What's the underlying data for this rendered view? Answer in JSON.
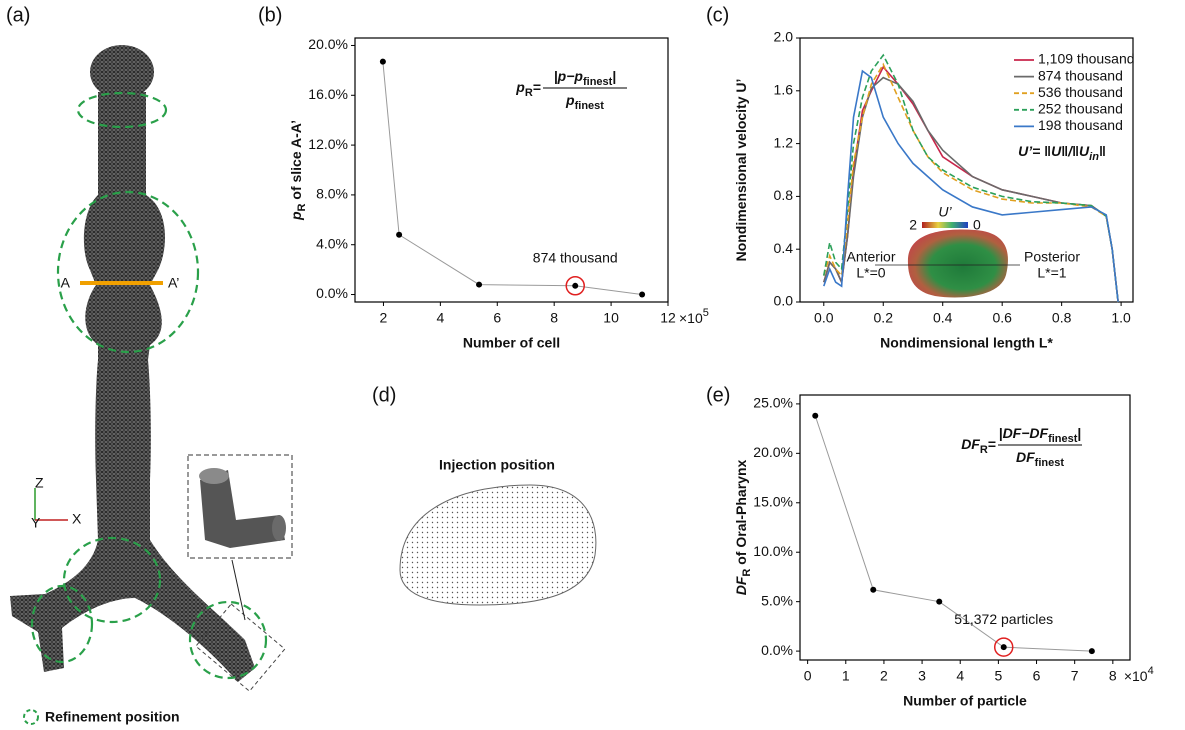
{
  "panel_a": {
    "label": "(a)",
    "section_left": "A",
    "section_right": "A’",
    "legend": "Refinement position",
    "axes": [
      "Z",
      "Y",
      "X"
    ]
  },
  "panel_d": {
    "label": "(d)",
    "title": "Injection position"
  },
  "chart_data": [
    {
      "type": "line",
      "panel": "(b)",
      "x": [
        1.98,
        2.55,
        5.36,
        8.74,
        11.09
      ],
      "values": [
        18.7,
        4.8,
        0.8,
        0.7,
        0.0
      ],
      "color": "#9a9a9a",
      "marker_color": "#000000",
      "xlim": [
        1,
        12
      ],
      "xticks": [
        2,
        4,
        6,
        8,
        10,
        12
      ],
      "x_multiplier": [
        "×10",
        "5"
      ],
      "ylim": [
        -0.6,
        20.6
      ],
      "yticks": [
        {
          "value": 0,
          "label": "0.0%"
        },
        {
          "value": 4,
          "label": "4.0%"
        },
        {
          "value": 8,
          "label": "8.0%"
        },
        {
          "value": 12,
          "label": "12.0%"
        },
        {
          "value": 16,
          "label": "16.0%"
        },
        {
          "value": 20,
          "label": "20.0%"
        }
      ],
      "xlabel": "Number of cell",
      "ylabel": [
        "p",
        "R",
        " of slice A-A’"
      ],
      "formula": {
        "lhs": [
          "p",
          "R",
          "="
        ],
        "num": [
          "|p−p",
          "finest",
          "|"
        ],
        "den": [
          "p",
          "finest"
        ]
      },
      "highlight": {
        "index": 3,
        "label": "874 thousand",
        "color": "#e02020"
      }
    },
    {
      "type": "line",
      "panel": "(c)",
      "x": [
        0,
        0.02,
        0.04,
        0.06,
        0.08,
        0.1,
        0.13,
        0.16,
        0.2,
        0.25,
        0.3,
        0.35,
        0.4,
        0.5,
        0.6,
        0.7,
        0.8,
        0.9,
        0.95,
        0.97,
        0.99
      ],
      "series": [
        {
          "name": "1,109 thousand",
          "color": "#c8264b",
          "dash": false,
          "values": [
            0.15,
            0.3,
            0.25,
            0.15,
            0.5,
            1.0,
            1.45,
            1.6,
            1.78,
            1.65,
            1.5,
            1.3,
            1.1,
            0.95,
            0.85,
            0.8,
            0.75,
            0.73,
            0.65,
            0.4,
            0.0
          ]
        },
        {
          "name": "874 thousand",
          "color": "#6a6a6a",
          "dash": false,
          "values": [
            0.15,
            0.3,
            0.25,
            0.15,
            0.5,
            0.95,
            1.4,
            1.62,
            1.7,
            1.65,
            1.52,
            1.3,
            1.15,
            0.95,
            0.85,
            0.8,
            0.75,
            0.73,
            0.65,
            0.4,
            0.0
          ]
        },
        {
          "name": "536 thousand",
          "color": "#e0a020",
          "dash": true,
          "values": [
            0.2,
            0.35,
            0.25,
            0.2,
            0.6,
            1.05,
            1.4,
            1.65,
            1.8,
            1.55,
            1.3,
            1.1,
            0.98,
            0.85,
            0.78,
            0.75,
            0.75,
            0.72,
            0.65,
            0.4,
            0.0
          ]
        },
        {
          "name": "252 thousand",
          "color": "#2ca05a",
          "dash": true,
          "values": [
            0.2,
            0.45,
            0.3,
            0.25,
            0.7,
            1.2,
            1.55,
            1.75,
            1.87,
            1.65,
            1.3,
            1.1,
            1.0,
            0.87,
            0.8,
            0.76,
            0.75,
            0.73,
            0.65,
            0.4,
            0.0
          ]
        },
        {
          "name": "198 thousand",
          "color": "#3a78c8",
          "dash": false,
          "values": [
            0.12,
            0.25,
            0.15,
            0.12,
            0.8,
            1.4,
            1.75,
            1.7,
            1.4,
            1.2,
            1.05,
            0.95,
            0.85,
            0.72,
            0.66,
            0.68,
            0.7,
            0.72,
            0.66,
            0.4,
            0.0
          ]
        }
      ],
      "xlim": [
        -0.08,
        1.04
      ],
      "xticks": [
        {
          "value": 0,
          "label": "0.0"
        },
        0.2,
        0.4,
        0.6,
        0.8,
        {
          "value": 1,
          "label": "1.0"
        }
      ],
      "ylim": [
        0,
        2
      ],
      "yticks": [
        {
          "value": 0,
          "label": "0.0"
        },
        0.4,
        0.8,
        1.2,
        1.6,
        {
          "value": 2,
          "label": "2.0"
        }
      ],
      "xlabel": "Nondimensional length L*",
      "ylabel": [
        "Nondimensional velocity U’"
      ],
      "formula": {
        "line": [
          "U’= ‖U‖/‖U",
          "in",
          "‖"
        ]
      },
      "legend": "upper right",
      "inset": {
        "colorbar": [
          2,
          0
        ],
        "colorbar_label": "U’",
        "left": [
          "Anterior",
          "L*=0"
        ],
        "right": [
          "Posterior",
          "L*=1"
        ]
      }
    },
    {
      "type": "line",
      "panel": "(e)",
      "x": [
        0.2,
        1.72,
        3.45,
        5.14,
        7.45
      ],
      "values": [
        23.8,
        6.2,
        5.0,
        0.4,
        0.0
      ],
      "color": "#9a9a9a",
      "marker_color": "#000000",
      "xlim": [
        -0.2,
        8.45
      ],
      "xticks": [
        0,
        1,
        2,
        3,
        4,
        5,
        6,
        7,
        8
      ],
      "x_multiplier": [
        "×10",
        "4"
      ],
      "ylim": [
        -0.9,
        25.9
      ],
      "yticks": [
        {
          "value": 0,
          "label": "0.0%"
        },
        {
          "value": 5,
          "label": "5.0%"
        },
        {
          "value": 10,
          "label": "10.0%"
        },
        {
          "value": 15,
          "label": "15.0%"
        },
        {
          "value": 20,
          "label": "20.0%"
        },
        {
          "value": 25,
          "label": "25.0%"
        }
      ],
      "xlabel": "Number of particle",
      "ylabel": [
        "DF",
        "R",
        " of Oral-Pharynx"
      ],
      "formula": {
        "lhs": [
          "DF",
          "R",
          "="
        ],
        "num": [
          "|DF−DF",
          "finest",
          "|"
        ],
        "den": [
          "DF",
          "finest"
        ]
      },
      "highlight": {
        "index": 3,
        "label": "51,372 particles",
        "color": "#e02020"
      }
    }
  ]
}
